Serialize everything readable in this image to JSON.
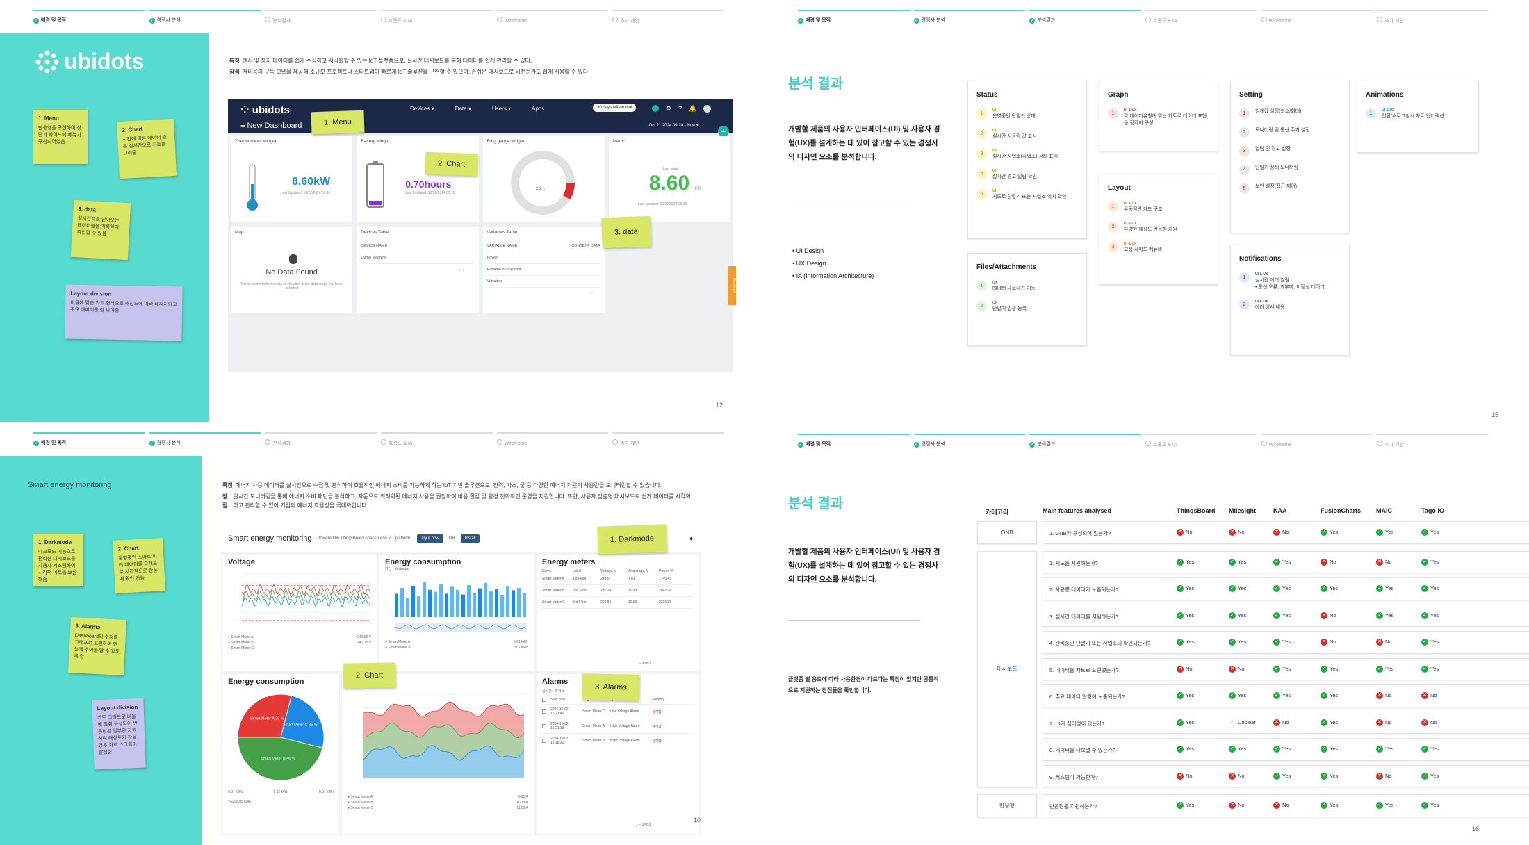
{
  "progress": [
    "배경 및 목적",
    "경쟁사 분석",
    "분석결과",
    "흐름도 & IA",
    "Wireframe",
    "추가 제안"
  ],
  "s1": {
    "page": "12",
    "logo": "ubidots",
    "feat_label": "특징",
    "feat": "센서 및 장치 데이터를 쉽게 수집하고 시각화할 수 있는 IoT 플랫폼으로, 실시간 대시보드를 통해 데이터를 쉽게 관리할 수 있다.",
    "adv_label": "장점",
    "adv": "저비용의 구독 모델을 제공해 소규모 프로젝트나 스타트업이 빠르게 IoT 솔루션을 구현할 수 있으며, 손쉬운 대시보드로 비전문가도 쉽게 사용할 수 있다.",
    "notes": [
      {
        "t": "1. Menu",
        "b": "반응형을 구현하여 상단과 사이드에 메뉴가 구성되어있음"
      },
      {
        "t": "2. Chart",
        "b": "시간에 따른 데이터 흐름 실시간으로 차트를 그려줌"
      },
      {
        "t": "3. data",
        "b": "실시간으로 받아오는 데이터들을 기록하여 확인할 수 있음"
      },
      {
        "t": "Layout division",
        "b": "비율에 맞춘 카드 형식으로 해상도에 따라 레지지되고 주요 데이터를 잘 보여줌"
      }
    ],
    "callouts": [
      "1. Menu",
      "2. Chart",
      "3. data"
    ],
    "dash": {
      "menus": [
        "Devices ▾",
        "Data ▾",
        "Users ▾",
        "Apps"
      ],
      "trial": "30 days left on trial",
      "title": "≡ New Dashboard",
      "date": "Oct 21 2024 09:10 - Now ▾",
      "w": [
        {
          "t": "Thermometer widget",
          "v": "8.60kW",
          "s": "Last Updated: 10/22/2024 09:10"
        },
        {
          "t": "Battery widget",
          "v": "0.70hours",
          "s": "Last Updated: 10/22/2024 09:10"
        },
        {
          "t": "Ring gauge widget",
          "v": "2.2..."
        },
        {
          "t": "Metric",
          "v": "8.60",
          "u": "kW",
          "l": "Last value",
          "s": "Last updated: 10/22/2024 09:10"
        },
        {
          "t": "Map",
          "v": "No Data Found",
          "s": "There seems to be no data to visualize in the data range you have selected"
        },
        {
          "t": "Devices Table",
          "c1": "DEVICE NAME",
          "r": [
            "Demo Machine"
          ]
        },
        {
          "t": "Variables Table",
          "c1": "VARIABLE NAME",
          "c2": "CONTEXT DATA",
          "r": [
            "Power",
            "Runtime during shift",
            "Vibration"
          ]
        }
      ],
      "feedback": "Feedback"
    }
  },
  "s2": {
    "page": "15",
    "title": "분석 결과",
    "para": "개발할 제품의 사용자 인터페이스(UI) 및 사용자 경험(UX)를 설계하는 데 있어 참고할 수 있는 경쟁사의 디자인 요소를 분석합니다.",
    "bullets": [
      "UI Design",
      "UX Design",
      "IA (Information Architecture)"
    ],
    "cards": [
      {
        "h": "Status",
        "items": [
          {
            "n": "1",
            "tag": "UI",
            "t": "운영중인 단말기 상태"
          },
          {
            "n": "2",
            "tag": "UI",
            "t": "실시간 사용량 값 표시"
          },
          {
            "n": "3",
            "tag": "UI",
            "t": "실시간 사업소(사업소) 상태 표시"
          },
          {
            "n": "4",
            "tag": "UI",
            "t": "실시간 경고 알림 확인"
          },
          {
            "n": "5",
            "tag": "UI",
            "t": "지도로 단말기 또는 사업소 위치 확인"
          }
        ]
      },
      {
        "h": "Graph",
        "items": [
          {
            "n": "1",
            "tag": "UI & UX",
            "t": "각 데이터유형에 맞는 차트로 데이터 표현을 정확히 구성"
          }
        ]
      },
      {
        "h": "Setting",
        "items": [
          {
            "n": "1",
            "t": "임계값 설정(최소/최대)"
          },
          {
            "n": "2",
            "t": "모니터링 및 통신 주기 설정"
          },
          {
            "n": "3",
            "t": "알림 및 경고 설정"
          },
          {
            "n": "4",
            "t": "단말기 상태 모니터링"
          },
          {
            "n": "5",
            "t": "보안 설정(접근 제어)"
          }
        ]
      },
      {
        "h": "Animations",
        "items": [
          {
            "n": "1",
            "tag": "UI & UX",
            "t": "전환/새로고침시 차트 인터랙션"
          }
        ]
      },
      {
        "h": "Layout",
        "items": [
          {
            "n": "1",
            "tag": "UI & UX",
            "t": "유동적인 카드 구조"
          },
          {
            "n": "2",
            "tag": "UI & UX",
            "t": "다양한 해상도 반응형 지원"
          },
          {
            "n": "3",
            "tag": "UI & UX",
            "t": "고정 사이드 메뉴바"
          }
        ]
      },
      {
        "h": "Files/Attachments",
        "items": [
          {
            "n": "1",
            "tag": "UX",
            "t": "데이터 내보내기 기능"
          },
          {
            "n": "2",
            "tag": "UX",
            "t": "단말기 일괄 등록"
          }
        ]
      },
      {
        "h": "Notifications",
        "items": [
          {
            "n": "1",
            "tag": "UI & UX",
            "t": "실시간 에러 알림",
            "sub": "• 통신 오류, 과부하, 비정상 데이터"
          },
          {
            "n": "2",
            "tag": "UI & UX",
            "t": "에러 상세 내용"
          }
        ]
      }
    ]
  },
  "s3": {
    "page": "10",
    "side_title": "Smart energy monitoring",
    "feat_label": "특징",
    "feat": "에너지 사용 데이터를 실시간으로 수집 및 분석하여 효율적인 에너지 소비를 가능하게 하는 IoT 기반 솔루션으로, 전력, 가스, 물 등 다양한 에너지 자원의 사용량을 모니터링할 수 있습니다.",
    "adv_label": "장점",
    "adv": "실시간 모니터링을 통해 에너지 소비 패턴을 분석하고, 자동으로 최적화된 에너지 사용을 권장하여 비용 절감 및 환경 친화적인 운영을 지원합니다. 또한, 사용자 맞춤형 대시보드로 쉽게 데이터를 시각화하고 관리할 수 있어 기업의 에너지 효율성을 극대화합니다.",
    "notes": [
      {
        "t": "1. Darkmode",
        "b": "다크모드 기능으로 편리한 대시보드를 사용자 커스텀하여 시각적 피로를 보완해줌"
      },
      {
        "t": "2. Chart",
        "b": "운영중인 스마트 미터 데이터를 그래프로 시각적으로 한눈에 확인 가능"
      },
      {
        "t": "3. Alarms",
        "b": "Dashboard의 수치를 그래프로 표현하여 한눈에 추이를 알 수 있도록 함"
      },
      {
        "t": "Layout division",
        "b": "카드 그리드로 비율에 맞춰 구성되어 반응형은 일부만 지원하며 해상도가 작을 경우 가로 스크롤이 발생함"
      }
    ],
    "callouts": [
      "1. Darkmode",
      "2. Chart",
      "3. Alarms"
    ],
    "dash": {
      "title": "Smart energy monitoring",
      "powered": "Powered by ThingsBoard opensource IoT platform.",
      "try": "Try it now",
      "or": "OR",
      "install": "Install",
      "voltage": "Voltage",
      "consumption": "Energy consumption",
      "yesterday": "기간 · Yesterday",
      "meters": "Energy meters",
      "cols": [
        "Name ↑",
        "Label",
        "Voltage, V",
        "Amperage, V",
        "Power, W"
      ],
      "rows": [
        [
          "Smart Meter A",
          "1st Floor",
          "249.0",
          "7.01",
          "1745.49"
        ],
        [
          "Smart Meter B",
          "2nd Floor",
          "237.24",
          "11.98",
          "2842.14"
        ],
        [
          "Smart Meter C",
          "3rd Floor",
          "203.86",
          "10.96",
          "2236.38"
        ]
      ],
      "pager": "1 – 3 of 3",
      "pie_title": "Energy consumption",
      "slices": [
        {
          "name": "Smart Meter A",
          "label": "Smart Meter A 29 %",
          "value": 29,
          "color": "#e53935"
        },
        {
          "name": "Smart Meter C",
          "label": "Smart Meter C 25 %",
          "value": 25,
          "color": "#1e88e5"
        },
        {
          "name": "Smart Meter B",
          "label": "Smart Meter B 46 %",
          "value": 46,
          "color": "#43a047"
        }
      ],
      "pie_vals": [
        "0.01 kWh",
        "0.02 kWh",
        "0.01 kWh"
      ],
      "total": "Total 0.05 kWh",
      "amperage": "Amperage",
      "alarms": "Alarms",
      "alarm_filter": "실시간 · 과거 ▾",
      "alarm_cols": [
        "Start time ↓",
        "Originator",
        "Type",
        "Severity"
      ],
      "alarm_rows": [
        [
          "2024-10-02 16:21:40",
          "Smart Meter C",
          "Low Voltage Alarm",
          "심각함"
        ],
        [
          "2024-10-02 16:21:13",
          "Smart Meter A",
          "High Voltage Alarm",
          "심각함"
        ],
        [
          "2024-10-02 16:18:21",
          "Smart Meter B",
          "High Voltage Alarm",
          "심각함"
        ]
      ],
      "alarm_pager": "1 – 3 of 3",
      "legend": [
        "Smart Meter A",
        "Smart Meter B",
        "Smart Meter C"
      ],
      "avg": "Avg",
      "v_vals": [
        "240.53 V",
        "241.15 V"
      ],
      "e_vals": [
        "0.01 kWh",
        "0.01 kWh"
      ],
      "a_vals": [
        "6.95 A",
        "10.13 A",
        "11.81 A"
      ],
      "yaxis_v": "Voltage, V",
      "yaxis_e": "Energy consumption, kWh",
      "yaxis_a": "Amperage, A"
    }
  },
  "s4": {
    "page": "16",
    "title": "분석 결과",
    "para": "개발할 제품의 사용자 인터페이스(UI) 및 사용자 경험(UX)를 설계하는 데 있어 참고할 수 있는 경쟁사의 디자인 요소를 분석합니다.",
    "note": "플랫폼 별 용도에 따라 사용환경이 다르다는 특징이 있지만 공통적으로 지원하는 장점들을 확인합니다.",
    "headers": [
      "카테고리",
      "Main features analysed",
      "ThingsBoard",
      "Milesight",
      "KAA",
      "FusionCharts",
      "MAIC",
      "Tago IO"
    ],
    "yes": "Yes",
    "no": "No",
    "unclear": "Unclear",
    "cats": [
      {
        "name": "GNB",
        "rows": [
          {
            "q": "1. GNB가 구성되어 있는가?",
            "v": [
              "n",
              "n",
              "n",
              "y",
              "y",
              "y"
            ]
          }
        ]
      },
      {
        "name": "대시보드",
        "rows": [
          {
            "q": "1. 지도를 지원하는가?",
            "v": [
              "y",
              "y",
              "y",
              "n",
              "n",
              "y"
            ]
          },
          {
            "q": "2. 사용량 데이터가 노출되는가?",
            "v": [
              "y",
              "y",
              "y",
              "y",
              "y",
              "y"
            ]
          },
          {
            "q": "3. 실시간 데이터를 지원하는가?",
            "v": [
              "y",
              "y",
              "y",
              "n",
              "y",
              "y"
            ]
          },
          {
            "q": "4. 관리중인 단말기 또는 사업소의 확인되는가?",
            "v": [
              "y",
              "y",
              "y",
              "n",
              "n",
              "y"
            ]
          },
          {
            "q": "5. 데이터를 차트로 표현했는가?",
            "v": [
              "n",
              "n",
              "y",
              "y",
              "y",
              "y"
            ]
          },
          {
            "q": "6. 주요 데이터 알림이 노출되는가?",
            "v": [
              "y",
              "y",
              "y",
              "y",
              "n",
              "n"
            ]
          },
          {
            "q": "7. UI가 심미성이 있는가?",
            "v": [
              "y",
              "u",
              "n",
              "y",
              "n",
              "n"
            ]
          },
          {
            "q": "8. 데이터를 내보낼 수 있는가?",
            "v": [
              "y",
              "y",
              "y",
              "y",
              "y",
              "y"
            ]
          },
          {
            "q": "9. 커스텀이 가능한가?",
            "v": [
              "n",
              "n",
              "y",
              "y",
              "n",
              "y"
            ]
          }
        ]
      },
      {
        "name": "반응형",
        "rows": [
          {
            "q": "반응형을 지원하는가?",
            "v": [
              "y",
              "n",
              "n",
              "y",
              "y",
              "y"
            ]
          }
        ]
      }
    ]
  }
}
